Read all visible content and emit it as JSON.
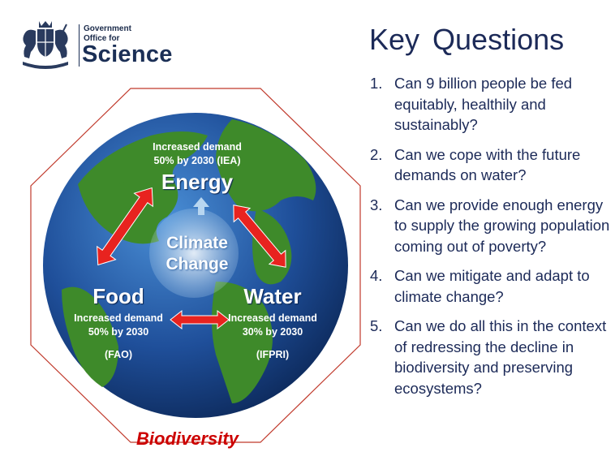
{
  "logo": {
    "line1": "Government",
    "line2": "Office for",
    "line3": "Science",
    "crest_icon": "royal-coat-of-arms-icon"
  },
  "title": "Key  Questions",
  "questions": [
    {
      "num": "1.",
      "text": "Can 9 billion people be fed equitably, healthily and sustainably?"
    },
    {
      "num": "2.",
      "text": "Can we cope with the future demands on water?"
    },
    {
      "num": "3.",
      "text": "Can we provide enough energy to supply the growing population coming out of poverty?"
    },
    {
      "num": "4.",
      "text": "Can we mitigate and adapt to climate change?"
    },
    {
      "num": "5.",
      "text": "Can we do all this in the context of redressing the decline in biodiversity and preserving ecosystems?"
    }
  ],
  "diagram": {
    "energy": {
      "demand_line1": "Increased demand",
      "demand_line2": "50% by 2030 (IEA)",
      "label": "Energy"
    },
    "climate": {
      "line1": "Climate",
      "line2": "Change"
    },
    "food": {
      "label": "Food",
      "demand_line1": "Increased demand",
      "demand_line2": "50% by 2030",
      "source": "(FAO)"
    },
    "water": {
      "label": "Water",
      "demand_line1": "Increased demand",
      "demand_line2": "30% by 2030",
      "source": "(IFPRI)"
    },
    "biodiversity": "Biodiversity",
    "colors": {
      "arrow": "#e8231f",
      "octagon_stroke": "#c0392b",
      "ocean": "#1f4f9a",
      "land": "#3e8a2a"
    }
  }
}
